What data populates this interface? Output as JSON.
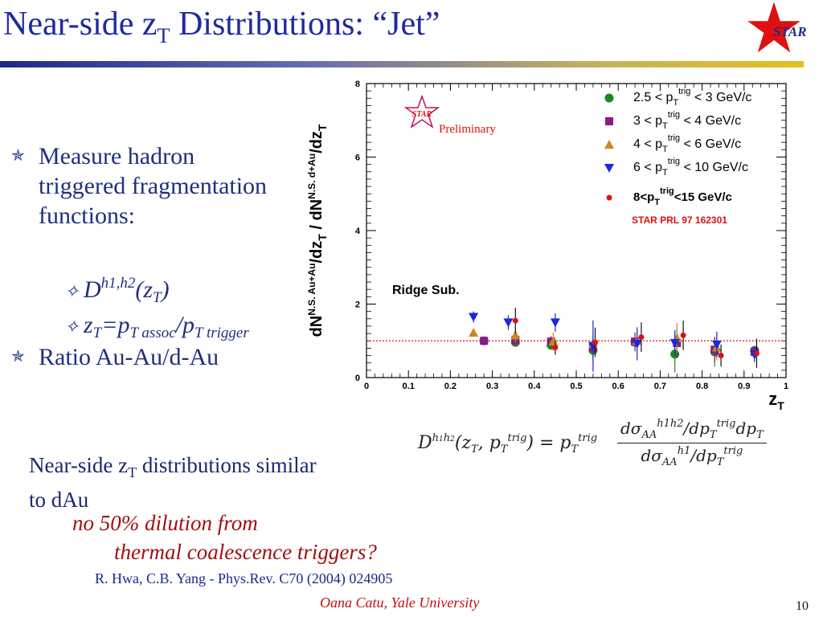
{
  "slide": {
    "title_main": "Near-side z",
    "title_sub": "T",
    "title_rest": " Distributions: “Jet”",
    "logo_text": "STAR",
    "bullets": {
      "b1": "Measure hadron triggered fragmentation functions:",
      "b2_D": "D",
      "b2_sup": "h1,h2",
      "b2_paren_open": "(z",
      "b2_sub": "T",
      "b2_paren_close": ")",
      "b3_z": "z",
      "b3_zsub": "T",
      "b3_eq": "=p",
      "b3_psub1": "T assoc",
      "b3_slash": "/p",
      "b3_psub2": "T trigger",
      "b4": "Ratio Au-Au/d-Au"
    },
    "formula": {
      "lhs": "D^{h1h2}(z_T, p_T^{trig}) = p_T^{trig}",
      "numerator": "dσ_AA^{h1h2}/dp_T^{trig} dp_T",
      "denominator": "dσ_AA^{h1}/dp_T^{trig}"
    },
    "conclusion_1": "Near-side z",
    "conclusion_sub": "T",
    "conclusion_2": " distributions similar",
    "conclusion_3": "to dAu",
    "red_line_1": "no 50% dilution from",
    "red_line_2": "thermal coalescence triggers?",
    "reference": "R. Hwa, C.B. Yang - Phys.Rev. C70 (2004) 024905",
    "footer": "Oana Catu, Yale University",
    "page_number": "10"
  },
  "chart_data": {
    "type": "scatter",
    "xlabel": "z_T",
    "ylabel": "dN^{N.S. Au+Au}/dz_T / dN^{N.S. d+Au}/dz_T",
    "xlim": [
      0,
      1
    ],
    "ylim": [
      0,
      8
    ],
    "x_ticks": [
      "0",
      "0.1",
      "0.2",
      "0.3",
      "0.4",
      "0.5",
      "0.6",
      "0.7",
      "0.8",
      "0.9",
      "1"
    ],
    "y_ticks": [
      "0",
      "2",
      "4",
      "6",
      "8"
    ],
    "reference_line": 1,
    "legend_position": "top-right",
    "annotations": {
      "logo": "STAR",
      "preliminary": "Preliminary",
      "ridge": "Ridge Sub.",
      "prl": "STAR PRL 97 162301"
    },
    "series": [
      {
        "name": "2.5 < p_T^trig < 3 GeV/c",
        "label_main": "2.5 < p",
        "label_sub": "T",
        "label_sup": "trig",
        "label_end": " < 3 GeV/c",
        "marker": "circle",
        "color": "#1a8a1a",
        "points": [
          [
            0.28,
            1.0,
            0.05
          ],
          [
            0.355,
            0.96,
            0.12
          ],
          [
            0.44,
            0.88,
            0.12
          ],
          [
            0.54,
            0.74,
            0.3
          ],
          [
            0.64,
            0.96,
            0.25
          ],
          [
            0.735,
            0.64,
            0.5
          ],
          [
            0.83,
            0.7,
            0.4
          ],
          [
            0.925,
            0.74,
            0.12
          ]
        ]
      },
      {
        "name": "3 < p_T^trig < 4 GeV/c",
        "label_main": "3 < p",
        "label_sub": "T",
        "label_sup": "trig",
        "label_end": " < 4 GeV/c",
        "marker": "square",
        "color": "#8a1a8a",
        "points": [
          [
            0.28,
            1.0,
            0.05
          ],
          [
            0.355,
            1.02,
            0.15
          ],
          [
            0.44,
            0.98,
            0.15
          ],
          [
            0.54,
            0.82,
            0.3
          ],
          [
            0.64,
            0.98,
            0.25
          ],
          [
            0.74,
            0.94,
            0.4
          ],
          [
            0.83,
            0.76,
            0.35
          ],
          [
            0.925,
            0.7,
            0.15
          ]
        ]
      },
      {
        "name": "4 < p_T^trig < 6 GeV/c",
        "label_main": "4 < p",
        "label_sub": "T",
        "label_sup": "trig",
        "label_end": " < 6 GeV/c",
        "marker": "triangle-up",
        "color": "#c88a1a",
        "points": [
          [
            0.255,
            1.22,
            0.05
          ],
          [
            0.355,
            1.15,
            0.2
          ],
          [
            0.445,
            0.98,
            0.25
          ],
          [
            0.54,
            0.92,
            0.3
          ],
          [
            0.645,
            1.0,
            0.3
          ],
          [
            0.74,
            1.08,
            0.4
          ],
          [
            0.835,
            0.82,
            0.35
          ]
        ]
      },
      {
        "name": "6 < p_T^trig < 10 GeV/c",
        "label_main": "6 < p",
        "label_sub": "T",
        "label_sup": "trig",
        "label_end": " < 10 GeV/c",
        "marker": "triangle-down",
        "color": "#1a2ad8",
        "points": [
          [
            0.255,
            1.65,
            0.15
          ],
          [
            0.338,
            1.5,
            0.2
          ],
          [
            0.45,
            1.5,
            0.25
          ],
          [
            0.54,
            0.86,
            0.7
          ],
          [
            0.645,
            0.92,
            0.45
          ],
          [
            0.735,
            0.94,
            0.35
          ],
          [
            0.835,
            0.9,
            0.35
          ],
          [
            0.925,
            0.62,
            0.2
          ]
        ]
      },
      {
        "name": "8<p_T^trig<15 GeV/c",
        "label_main": "8<p",
        "label_sub": "T",
        "label_sup": "trig",
        "label_end": "<15 GeV/c",
        "marker": "small-circle",
        "color": "#e01010",
        "points": [
          [
            0.355,
            1.55,
            0.35
          ],
          [
            0.45,
            0.82,
            0.2
          ],
          [
            0.545,
            0.96,
            0.4
          ],
          [
            0.655,
            1.1,
            0.4
          ],
          [
            0.755,
            1.15,
            0.4
          ],
          [
            0.845,
            0.6,
            0.3
          ],
          [
            0.93,
            0.66,
            0.4
          ]
        ]
      }
    ]
  }
}
